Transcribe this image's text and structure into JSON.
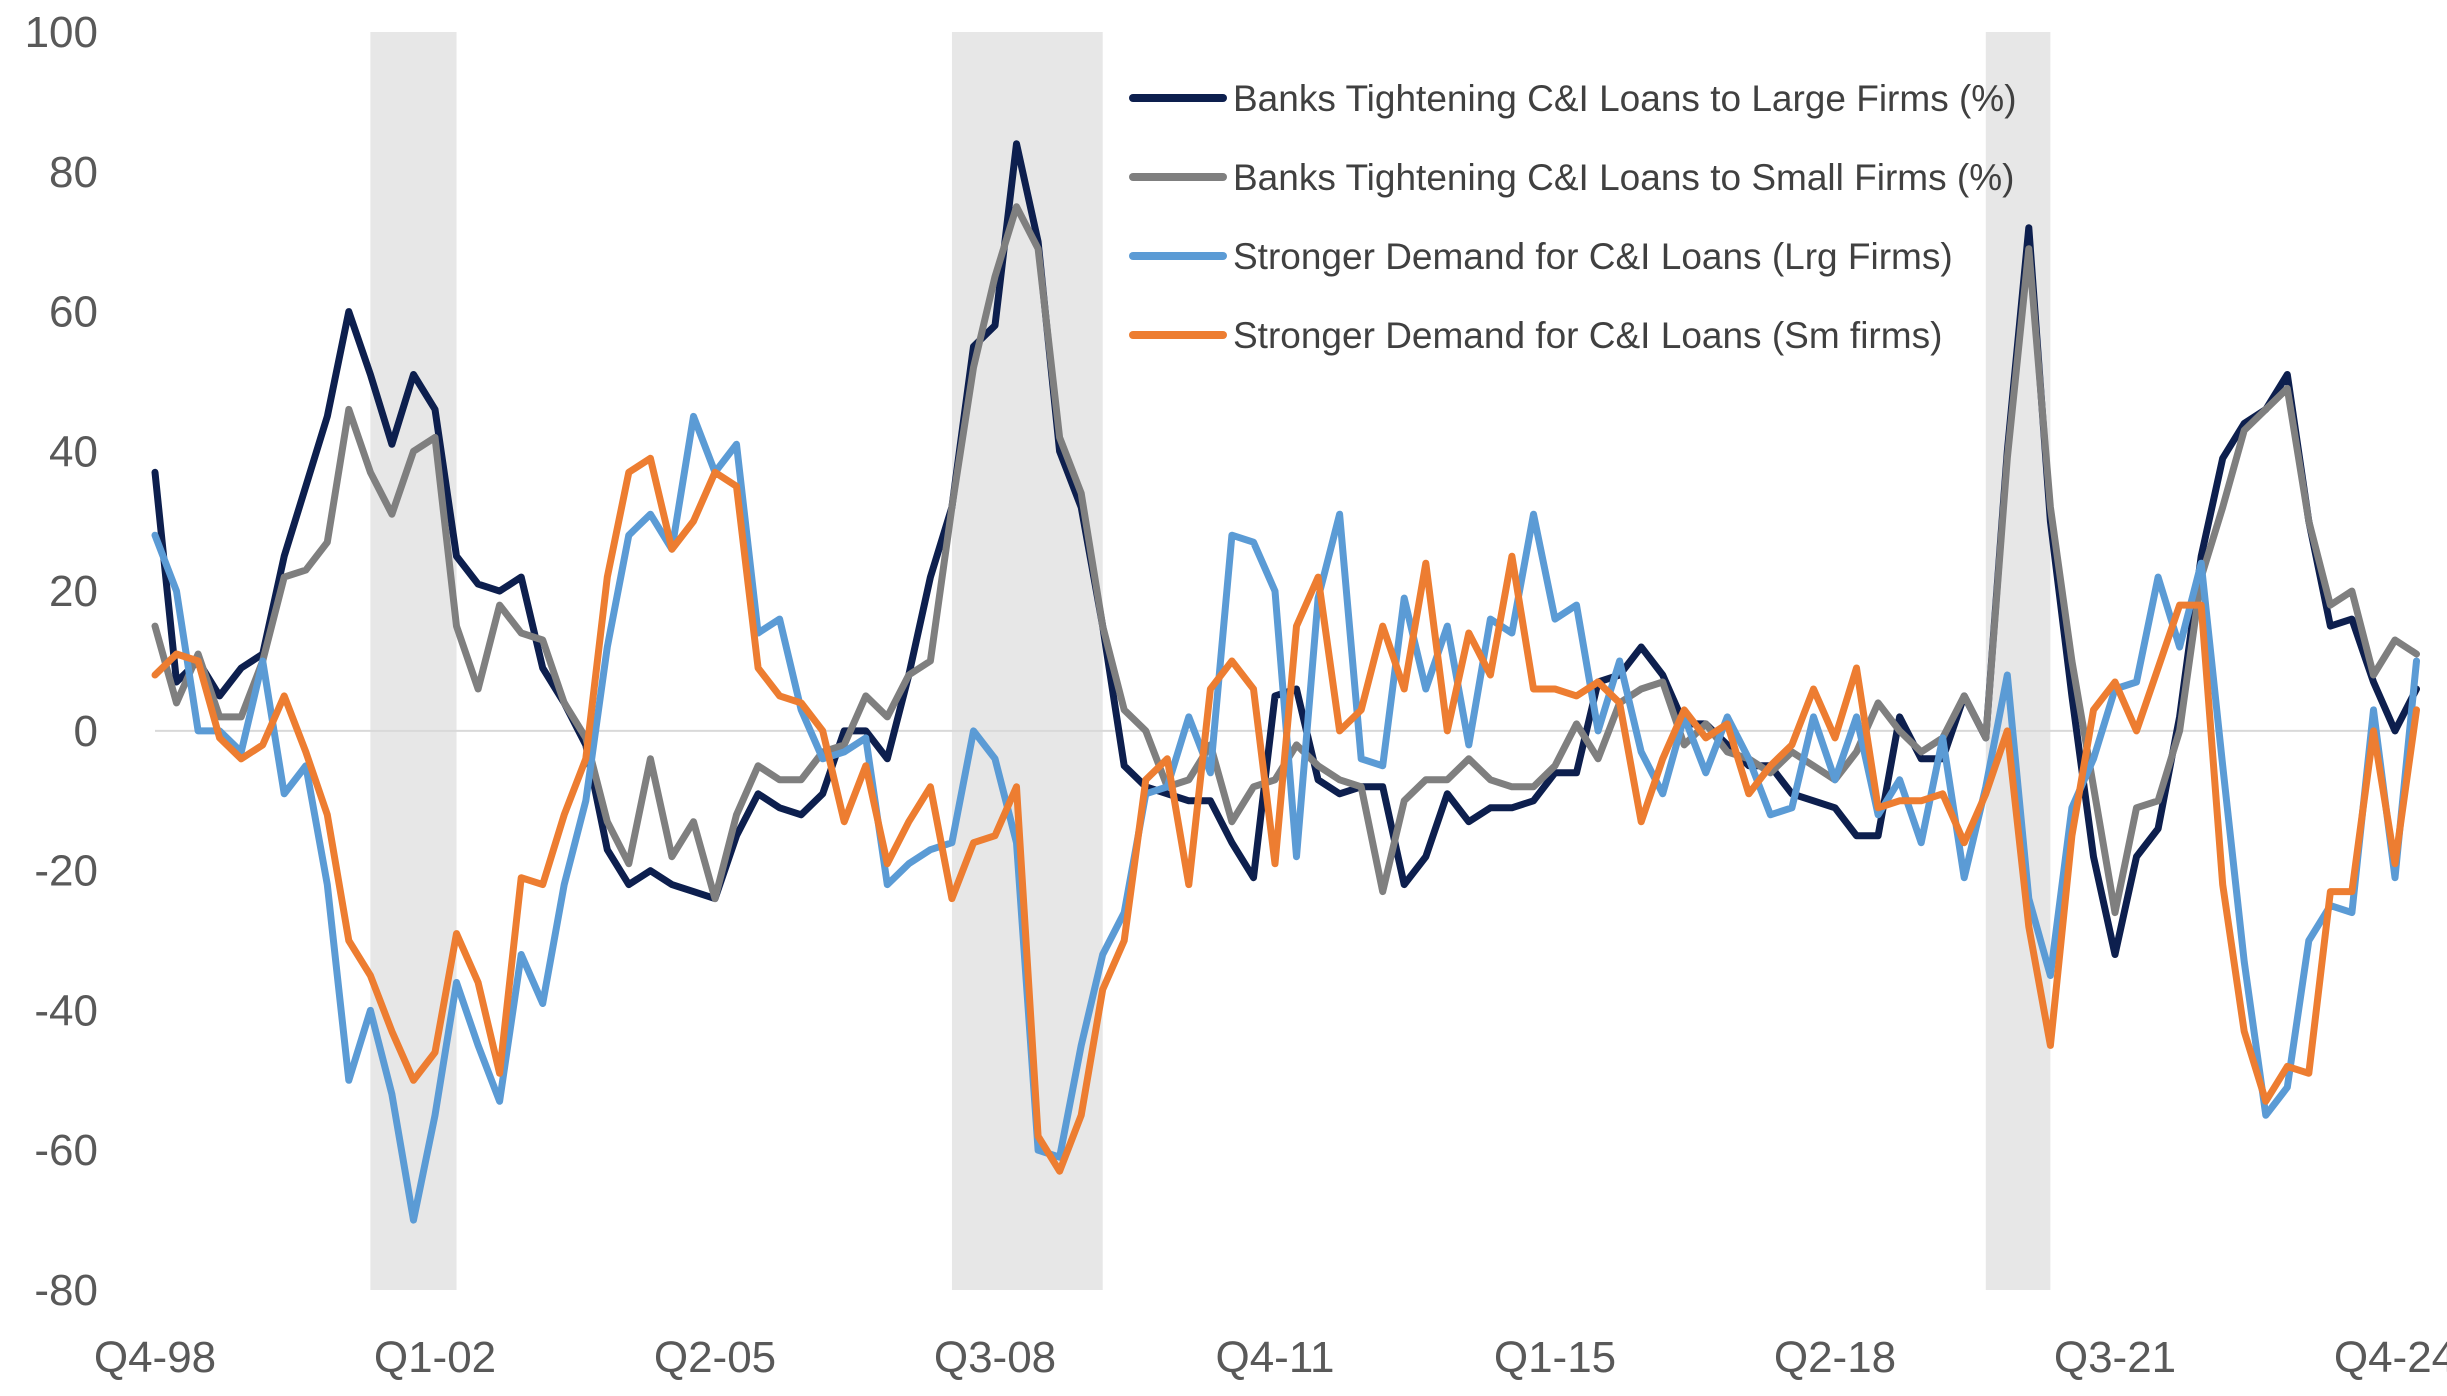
{
  "chart_data": {
    "type": "line",
    "title": "",
    "xlabel": "",
    "ylabel": "",
    "ylim": [
      -80,
      100
    ],
    "yticks": [
      100,
      80,
      60,
      40,
      20,
      0,
      -20,
      -40,
      -60,
      -80
    ],
    "x_tick_labels": [
      "Q4-98",
      "Q1-02",
      "Q2-05",
      "Q3-08",
      "Q4-11",
      "Q1-15",
      "Q2-18",
      "Q3-21",
      "Q4-24"
    ],
    "x_tick_indices": [
      0,
      13,
      26,
      39,
      52,
      65,
      78,
      91,
      104
    ],
    "n_points": 105,
    "grid": false,
    "zero_line": true,
    "legend_position": "top-center",
    "recession_shading": [
      {
        "start": 10,
        "end": 14,
        "color": "#e7e7e7"
      },
      {
        "start": 37,
        "end": 44,
        "color": "#e7e7e7"
      },
      {
        "start": 85,
        "end": 88,
        "color": "#e7e7e7"
      }
    ],
    "series": [
      {
        "name": "Banks Tightening C&I Loans to Large Firms (%)",
        "color": "#0d1f4e",
        "values": [
          37,
          7,
          10,
          5,
          9,
          11,
          25,
          35,
          45,
          60,
          51,
          41,
          51,
          46,
          25,
          21,
          20,
          22,
          9,
          4,
          -2,
          -17,
          -22,
          -20,
          -22,
          -23,
          -24,
          -15,
          -9,
          -11,
          -12,
          -9,
          0,
          0,
          -4,
          8,
          22,
          32,
          55,
          58,
          84,
          70,
          40,
          32,
          15,
          -5,
          -8,
          -9,
          -10,
          -10,
          -16,
          -21,
          5,
          6,
          -7,
          -9,
          -8,
          -8,
          -22,
          -18,
          -9,
          -13,
          -11,
          -11,
          -10,
          -6,
          -6,
          7,
          8,
          12,
          8,
          1,
          1,
          -2,
          -5,
          -5,
          -9,
          -10,
          -11,
          -15,
          -15,
          2,
          -4,
          -4,
          5,
          -1,
          40,
          72,
          30,
          5,
          -18,
          -32,
          -18,
          -14,
          2,
          25,
          39,
          44,
          46,
          51,
          30,
          15,
          16,
          7,
          0,
          6
        ]
      },
      {
        "name": "Banks Tightening C&I Loans to Small Firms (%)",
        "color": "#7f7f7f",
        "values": [
          15,
          4,
          11,
          2,
          2,
          10,
          22,
          23,
          27,
          46,
          37,
          31,
          40,
          42,
          15,
          6,
          18,
          14,
          13,
          4,
          -1,
          -13,
          -19,
          -4,
          -18,
          -13,
          -24,
          -12,
          -5,
          -7,
          -7,
          -3,
          -2,
          5,
          2,
          8,
          10,
          32,
          52,
          65,
          75,
          69,
          42,
          34,
          15,
          3,
          0,
          -8,
          -7,
          -2,
          -13,
          -8,
          -7,
          -2,
          -5,
          -7,
          -8,
          -23,
          -10,
          -7,
          -7,
          -4,
          -7,
          -8,
          -8,
          -5,
          1,
          -4,
          4,
          6,
          7,
          -2,
          1,
          -3,
          -4,
          -6,
          -3,
          -5,
          -7,
          -3,
          4,
          0,
          -3,
          -1,
          5,
          -1,
          39,
          69,
          32,
          10,
          -8,
          -26,
          -11,
          -10,
          0,
          22,
          32,
          43,
          46,
          49,
          30,
          18,
          20,
          8,
          13,
          11
        ]
      },
      {
        "name": "Stronger Demand for C&I Loans (Lrg Firms)",
        "color": "#5b9bd5",
        "values": [
          28,
          20,
          0,
          0,
          -3,
          10,
          -9,
          -5,
          -22,
          -50,
          -40,
          -52,
          -70,
          -55,
          -36,
          -45,
          -53,
          -32,
          -39,
          -22,
          -10,
          12,
          28,
          31,
          26,
          45,
          37,
          41,
          14,
          16,
          3,
          -4,
          -3,
          -1,
          -22,
          -19,
          -17,
          -16,
          0,
          -4,
          -16,
          -60,
          -61,
          -45,
          -32,
          -26,
          -9,
          -8,
          2,
          -6,
          28,
          27,
          20,
          -18,
          19,
          31,
          -4,
          -5,
          19,
          6,
          15,
          -2,
          16,
          14,
          31,
          16,
          18,
          0,
          10,
          -3,
          -9,
          2,
          -6,
          2,
          -4,
          -12,
          -11,
          2,
          -7,
          2,
          -12,
          -7,
          -16,
          -1,
          -21,
          -8,
          8,
          -24,
          -35,
          -11,
          -4,
          6,
          7,
          22,
          12,
          24,
          -5,
          -33,
          -55,
          -51,
          -30,
          -25,
          -26,
          3,
          -21,
          10
        ]
      },
      {
        "name": "Stronger Demand for C&I Loans (Sm firms)",
        "color": "#ed7d31",
        "values": [
          8,
          11,
          10,
          -1,
          -4,
          -2,
          5,
          -3,
          -12,
          -30,
          -35,
          -43,
          -50,
          -46,
          -29,
          -36,
          -49,
          -21,
          -22,
          -12,
          -4,
          22,
          37,
          39,
          26,
          30,
          37,
          35,
          9,
          5,
          4,
          0,
          -13,
          -5,
          -19,
          -13,
          -8,
          -24,
          -16,
          -15,
          -8,
          -58,
          -63,
          -55,
          -37,
          -30,
          -7,
          -4,
          -22,
          6,
          10,
          6,
          -19,
          15,
          22,
          0,
          3,
          15,
          6,
          24,
          0,
          14,
          8,
          25,
          6,
          6,
          5,
          7,
          4,
          -13,
          -4,
          3,
          -1,
          1,
          -9,
          -5,
          -2,
          6,
          -1,
          9,
          -11,
          -10,
          -10,
          -9,
          -16,
          -9,
          0,
          -28,
          -45,
          -15,
          3,
          7,
          0,
          9,
          18,
          18,
          -22,
          -43,
          -53,
          -48,
          -49,
          -23,
          -23,
          0,
          -19,
          3
        ]
      }
    ]
  }
}
